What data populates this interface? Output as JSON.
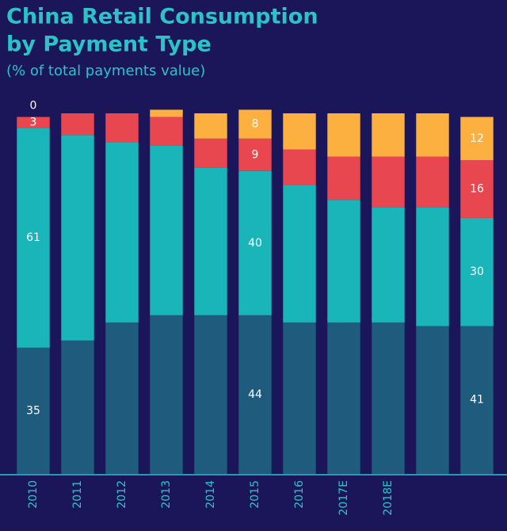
{
  "chart_data": {
    "type": "stacked_bar",
    "title": [
      "China Retail Consumption",
      "by Payment Type"
    ],
    "subtitle": "(% of total payments value)",
    "categories": [
      "2010",
      "2011",
      "2012",
      "2013",
      "2014",
      "2015",
      "2016",
      "2017E",
      "2018E",
      null,
      null
    ],
    "series": [
      {
        "color": "#1f5b7c",
        "values": [
          35,
          37,
          42,
          44,
          44,
          44,
          42,
          42,
          42,
          41,
          41
        ]
      },
      {
        "color": "#19b5b8",
        "values": [
          61,
          57,
          50,
          47,
          41,
          40,
          38,
          34,
          32,
          33,
          30
        ]
      },
      {
        "color": "#e8474f",
        "values": [
          3,
          6,
          8,
          8,
          8,
          9,
          10,
          12,
          14,
          14,
          16
        ]
      },
      {
        "color": "#fbb040",
        "values": [
          0,
          0,
          0,
          2,
          7,
          8,
          10,
          12,
          12,
          12,
          12
        ]
      }
    ],
    "data_labels_at": [
      0,
      5,
      10
    ],
    "ylim": [
      0,
      100
    ]
  }
}
